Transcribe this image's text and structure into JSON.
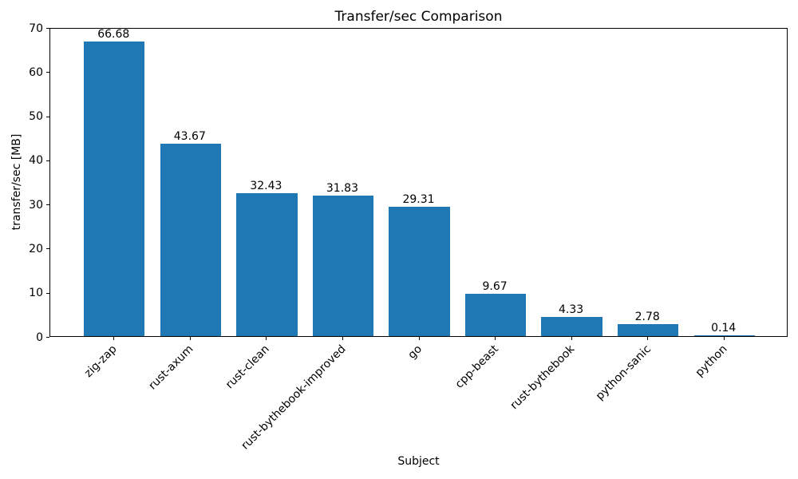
{
  "chart_data": {
    "type": "bar",
    "title": "Transfer/sec Comparison",
    "xlabel": "Subject",
    "ylabel": "transfer/sec [MB]",
    "categories": [
      "zig-zap",
      "rust-axum",
      "rust-clean",
      "rust-bythebook-improved",
      "go",
      "cpp-beast",
      "rust-bythebook",
      "python-sanic",
      "python"
    ],
    "values": [
      66.68,
      43.67,
      32.43,
      31.83,
      29.31,
      9.67,
      4.33,
      2.78,
      0.14
    ],
    "value_labels": [
      "66.68",
      "43.67",
      "32.43",
      "31.83",
      "29.31",
      "9.67",
      "4.33",
      "2.78",
      "0.14"
    ],
    "ylim": [
      0,
      70
    ],
    "yticks": [
      0,
      10,
      20,
      30,
      40,
      50,
      60,
      70
    ],
    "bar_color": "#1f77b4",
    "grid": false,
    "legend": null,
    "x_tick_rotation_deg": 45
  }
}
